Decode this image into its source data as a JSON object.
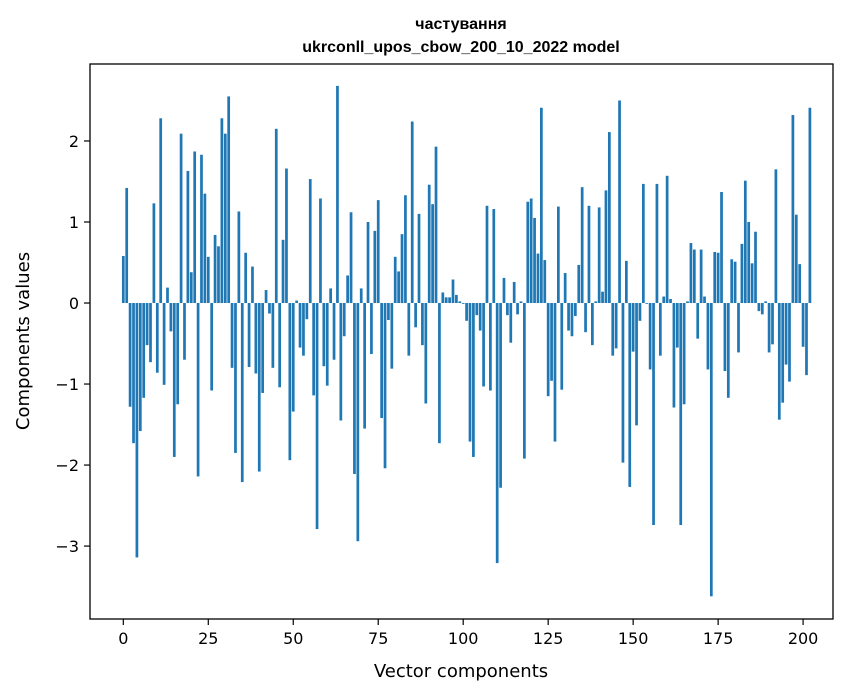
{
  "chart_data": {
    "type": "bar",
    "title": "частування",
    "subtitle": "ukrconll_upos_cbow_200_10_2022 model",
    "xlabel": "Vector components",
    "ylabel": "Components values",
    "xlim": [
      -9.8,
      208.8
    ],
    "ylim": [
      -3.9,
      2.95
    ],
    "x_ticks": [
      0,
      25,
      50,
      75,
      100,
      125,
      150,
      175,
      200
    ],
    "x_tick_labels": [
      "0",
      "25",
      "50",
      "75",
      "100",
      "125",
      "150",
      "175",
      "200"
    ],
    "y_ticks": [
      -3,
      -2,
      -1,
      0,
      1,
      2
    ],
    "y_tick_labels": [
      "−3",
      "−2",
      "−1",
      "0",
      "1",
      "2"
    ],
    "grid": false,
    "bar_color": "#1f77b4",
    "values": [
      0.58,
      1.42,
      -1.28,
      -1.73,
      -3.14,
      -1.58,
      -1.17,
      -0.52,
      -0.73,
      1.23,
      -0.86,
      2.28,
      -1.01,
      0.19,
      -0.35,
      -1.9,
      -1.25,
      2.09,
      -0.7,
      1.63,
      0.38,
      1.87,
      -2.14,
      1.83,
      1.35,
      0.57,
      -1.08,
      0.84,
      0.7,
      2.28,
      2.09,
      2.55,
      -0.8,
      -1.85,
      1.13,
      -2.21,
      0.62,
      -0.79,
      0.45,
      -0.87,
      -2.08,
      -1.11,
      0.16,
      -0.13,
      -0.8,
      2.15,
      -1.04,
      0.78,
      1.66,
      -1.94,
      -1.34,
      0.03,
      -0.55,
      -0.65,
      -0.2,
      1.53,
      -1.14,
      -2.79,
      1.29,
      -0.78,
      -1.02,
      0.18,
      -0.7,
      2.68,
      -1.45,
      -0.41,
      0.34,
      1.12,
      -2.11,
      -2.94,
      0.18,
      -1.55,
      1.0,
      -0.63,
      0.89,
      1.27,
      -1.42,
      -2.04,
      -0.21,
      -0.81,
      0.57,
      0.39,
      0.85,
      1.33,
      -0.65,
      2.24,
      -0.3,
      1.1,
      -0.52,
      -1.24,
      1.46,
      1.22,
      1.93,
      -1.73,
      0.13,
      0.07,
      0.07,
      0.29,
      0.1,
      0.02,
      -0.01,
      -0.22,
      -1.71,
      -1.9,
      -0.15,
      -0.34,
      -1.03,
      1.2,
      -1.08,
      1.16,
      -3.21,
      -2.28,
      0.31,
      -0.15,
      -0.49,
      0.26,
      -0.14,
      0.02,
      -1.92,
      1.25,
      1.29,
      1.05,
      0.61,
      2.41,
      0.53,
      -1.15,
      -0.96,
      -1.71,
      1.19,
      -1.07,
      0.37,
      -0.34,
      -0.41,
      -0.16,
      0.47,
      1.43,
      -0.36,
      1.2,
      -0.52,
      0.02,
      1.18,
      0.14,
      1.39,
      2.11,
      -0.65,
      -0.56,
      2.5,
      -1.97,
      0.52,
      -2.27,
      -0.6,
      -1.51,
      -0.22,
      1.47,
      -0.01,
      -0.82,
      -2.74,
      1.47,
      -0.65,
      0.08,
      1.57,
      0.05,
      -1.29,
      -0.55,
      -2.74,
      -1.25,
      0.02,
      0.74,
      0.66,
      -0.44,
      0.66,
      0.08,
      -0.82,
      -3.62,
      0.63,
      0.62,
      1.37,
      -0.84,
      -1.17,
      0.54,
      0.51,
      -0.61,
      0.73,
      1.51,
      1.0,
      0.49,
      0.88,
      -0.1,
      -0.14,
      0.02,
      -0.61,
      -0.51,
      1.65,
      -1.44,
      -1.23,
      -0.76,
      -0.97,
      2.32,
      1.09,
      0.48,
      -0.54,
      -0.89,
      2.41
    ]
  }
}
